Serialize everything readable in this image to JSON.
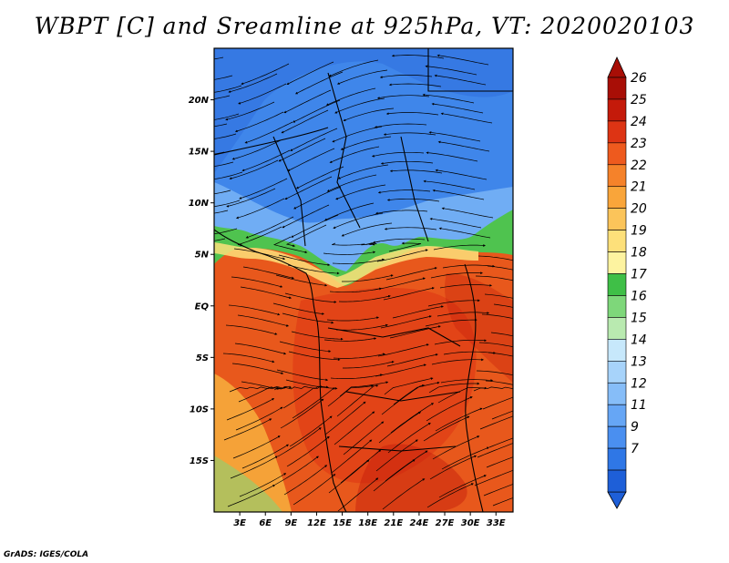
{
  "title": "WBPT [C] and Sreamline at 925hPa, VT: 2020020103",
  "credit": "GrADS: IGES/COLA",
  "map": {
    "variable": "Wet-bulb potential temperature",
    "units": "C",
    "level": "925hPa",
    "valid_time": "2020020103",
    "lon_range": [
      0,
      35
    ],
    "lat_range": [
      -20,
      25
    ],
    "lat_labels": [
      {
        "lat": 20,
        "label": "20N"
      },
      {
        "lat": 15,
        "label": "15N"
      },
      {
        "lat": 10,
        "label": "10N"
      },
      {
        "lat": 5,
        "label": "5N"
      },
      {
        "lat": 0,
        "label": "EQ"
      },
      {
        "lat": -5,
        "label": "5S"
      },
      {
        "lat": -10,
        "label": "10S"
      },
      {
        "lat": -15,
        "label": "15S"
      }
    ],
    "lon_labels": [
      {
        "lon": 3,
        "label": "3E"
      },
      {
        "lon": 6,
        "label": "6E"
      },
      {
        "lon": 9,
        "label": "9E"
      },
      {
        "lon": 12,
        "label": "12E"
      },
      {
        "lon": 15,
        "label": "15E"
      },
      {
        "lon": 18,
        "label": "18E"
      },
      {
        "lon": 21,
        "label": "21E"
      },
      {
        "lon": 24,
        "label": "24E"
      },
      {
        "lon": 27,
        "label": "27E"
      },
      {
        "lon": 30,
        "label": "30E"
      },
      {
        "lon": 33,
        "label": "33E"
      }
    ]
  },
  "colorbar": {
    "labels": [
      "7",
      "9",
      "11",
      "12",
      "13",
      "14",
      "15",
      "16",
      "17",
      "18",
      "19",
      "20",
      "21",
      "22",
      "23",
      "24",
      "25",
      "26"
    ],
    "colors": [
      "#1e5fd8",
      "#2f77e6",
      "#4a8ff0",
      "#66a6f5",
      "#86bdf8",
      "#a7d3fa",
      "#c7e8fb",
      "#b9eab0",
      "#7ed77a",
      "#3fbf47",
      "#fdf3a0",
      "#fde07a",
      "#fbc45a",
      "#f9a53a",
      "#f5822a",
      "#ee5a1e",
      "#dd3414",
      "#c41a0a",
      "#a80e06"
    ],
    "over_color": "#a80e06",
    "under_color": "#1e5fd8"
  }
}
